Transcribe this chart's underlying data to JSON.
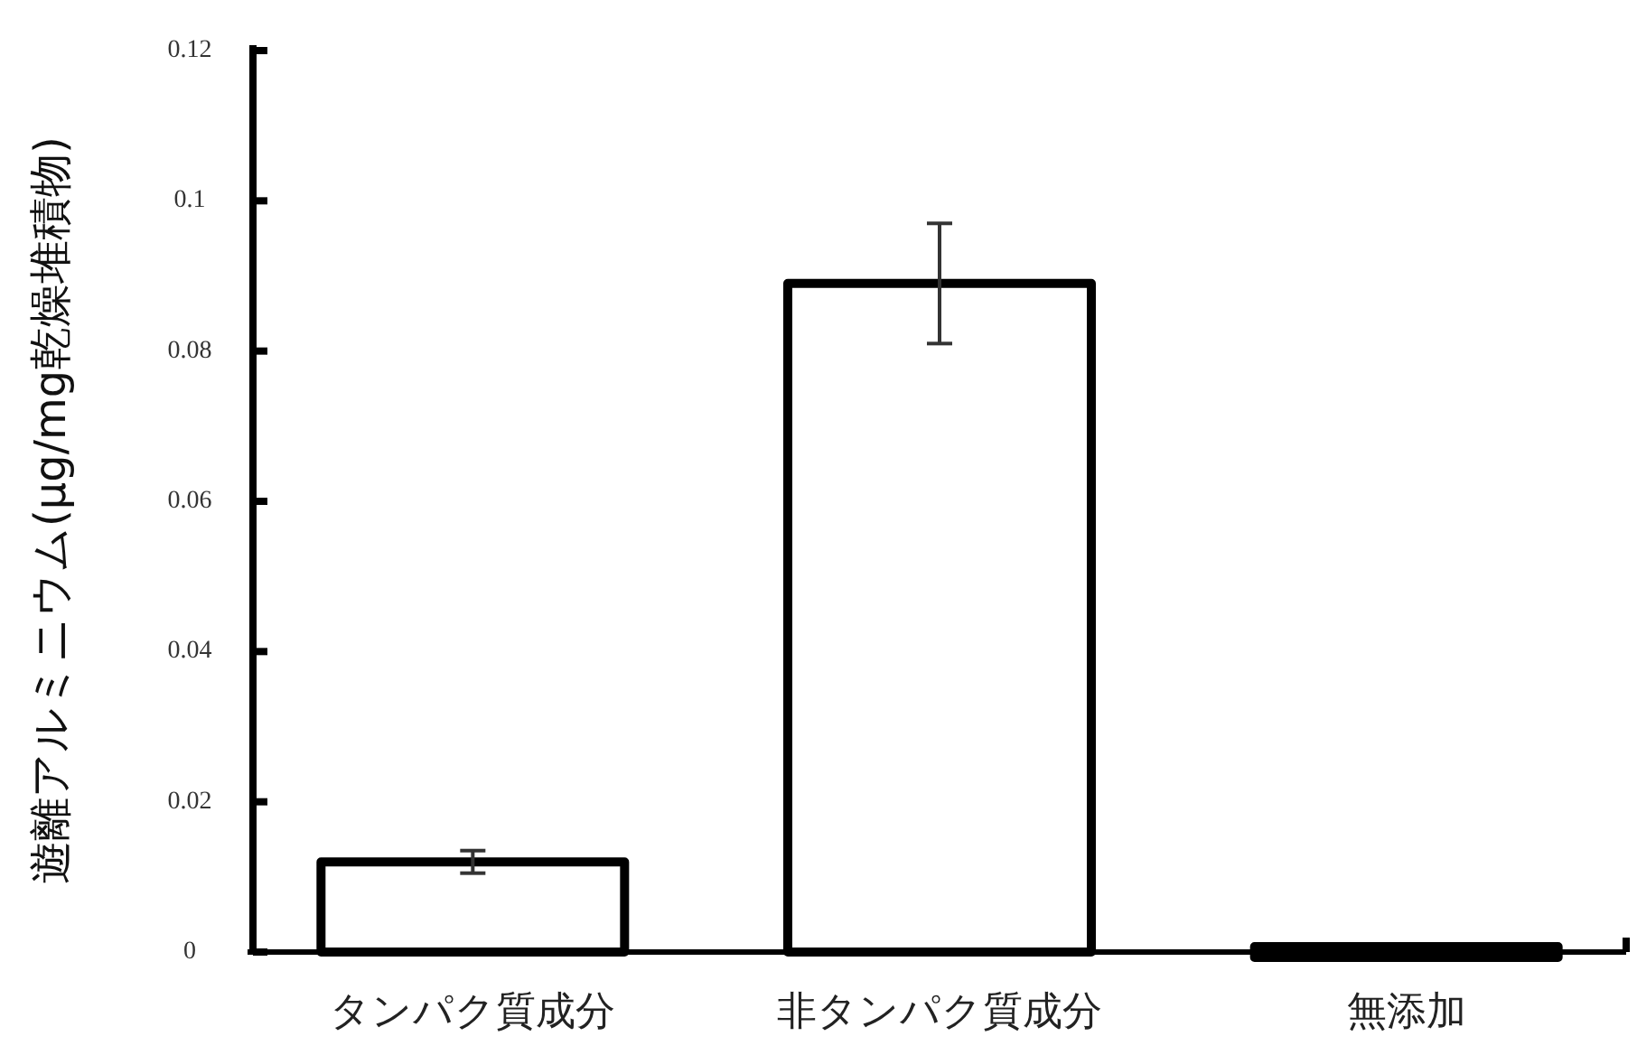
{
  "chart_data": {
    "type": "bar",
    "ylabel": "遊離アルミニウム(μg/mg乾燥堆積物)",
    "categories": [
      "タンパク質成分",
      "非タンパク質成分",
      "無添加"
    ],
    "values": [
      0.012,
      0.089,
      0
    ],
    "errors": [
      0.0015,
      0.008,
      null
    ],
    "colors": [
      "#ffffff",
      "#ffffff",
      "#000000"
    ],
    "ylim": [
      0,
      0.12
    ],
    "yticks": [
      0,
      0.02,
      0.04,
      0.06,
      0.08,
      0.1,
      0.12
    ],
    "grid": false
  }
}
